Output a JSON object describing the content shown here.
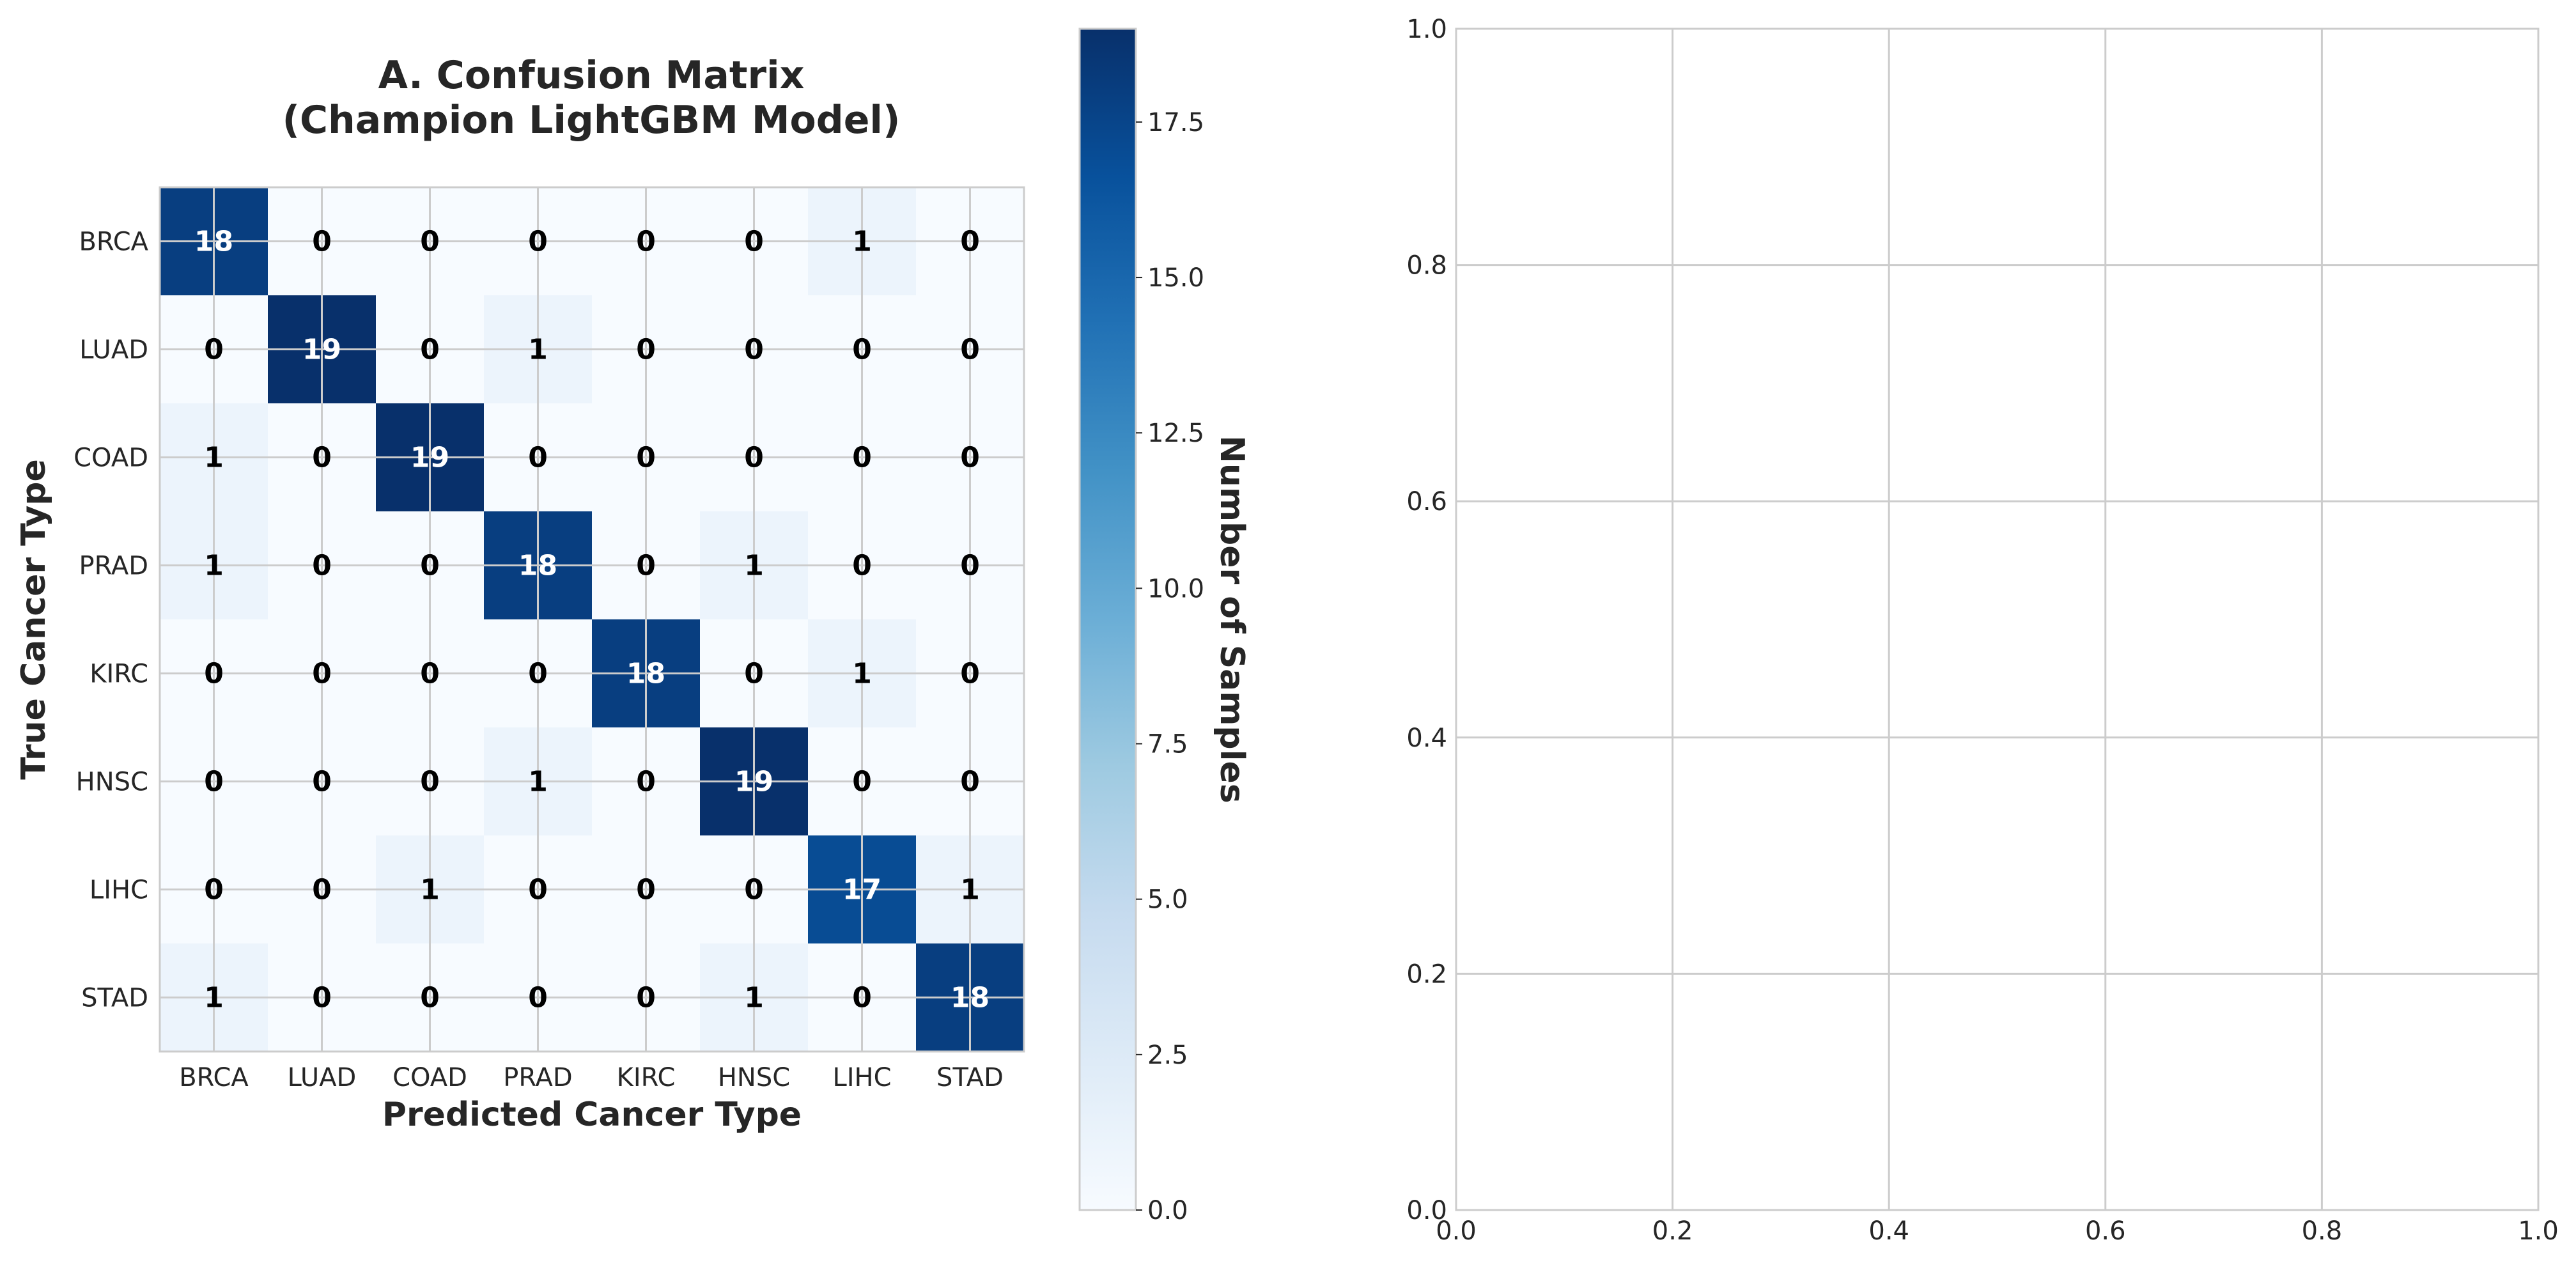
{
  "chart_data": [
    {
      "type": "heatmap",
      "title_lines": [
        "A. Confusion Matrix",
        "(Champion LightGBM Model)"
      ],
      "xlabel": "Predicted Cancer Type",
      "ylabel": "True Cancer Type",
      "x_categories": [
        "BRCA",
        "LUAD",
        "COAD",
        "PRAD",
        "KIRC",
        "HNSC",
        "LIHC",
        "STAD"
      ],
      "y_categories": [
        "BRCA",
        "LUAD",
        "COAD",
        "PRAD",
        "KIRC",
        "HNSC",
        "LIHC",
        "STAD"
      ],
      "matrix": [
        [
          18,
          0,
          0,
          0,
          0,
          0,
          1,
          0
        ],
        [
          0,
          19,
          0,
          1,
          0,
          0,
          0,
          0
        ],
        [
          1,
          0,
          19,
          0,
          0,
          0,
          0,
          0
        ],
        [
          1,
          0,
          0,
          18,
          0,
          1,
          0,
          0
        ],
        [
          0,
          0,
          0,
          0,
          18,
          0,
          1,
          0
        ],
        [
          0,
          0,
          0,
          1,
          0,
          19,
          0,
          0
        ],
        [
          0,
          0,
          1,
          0,
          0,
          0,
          17,
          1
        ],
        [
          1,
          0,
          0,
          0,
          0,
          1,
          0,
          18
        ]
      ],
      "colormap": "Blues",
      "colormap_stops": [
        "#f7fbff",
        "#deebf7",
        "#c6dbef",
        "#9ecae1",
        "#6baed6",
        "#4292c6",
        "#2171b5",
        "#08519c",
        "#08306b"
      ],
      "colorbar": {
        "label": "Number of Samples",
        "range": [
          0,
          19
        ],
        "ticks": [
          "0.0",
          "2.5",
          "5.0",
          "7.5",
          "10.0",
          "12.5",
          "15.0",
          "17.5"
        ],
        "tick_values": [
          0,
          2.5,
          5,
          7.5,
          10,
          12.5,
          15,
          17.5
        ]
      },
      "grid": true
    },
    {
      "type": "scatter",
      "series": [],
      "xlim": [
        0,
        1
      ],
      "ylim": [
        0,
        1
      ],
      "xticks": [
        "0.0",
        "0.2",
        "0.4",
        "0.6",
        "0.8",
        "1.0"
      ],
      "yticks": [
        "0.0",
        "0.2",
        "0.4",
        "0.6",
        "0.8",
        "1.0"
      ],
      "xtick_values": [
        0,
        0.2,
        0.4,
        0.6,
        0.8,
        1.0
      ],
      "ytick_values": [
        0,
        0.2,
        0.4,
        0.6,
        0.8,
        1.0
      ],
      "grid": true
    }
  ],
  "colors": {
    "grid": "#cccccc",
    "frame": "#cccccc",
    "text_dark": "#000000",
    "text_light": "#ffffff",
    "label": "#262626"
  }
}
